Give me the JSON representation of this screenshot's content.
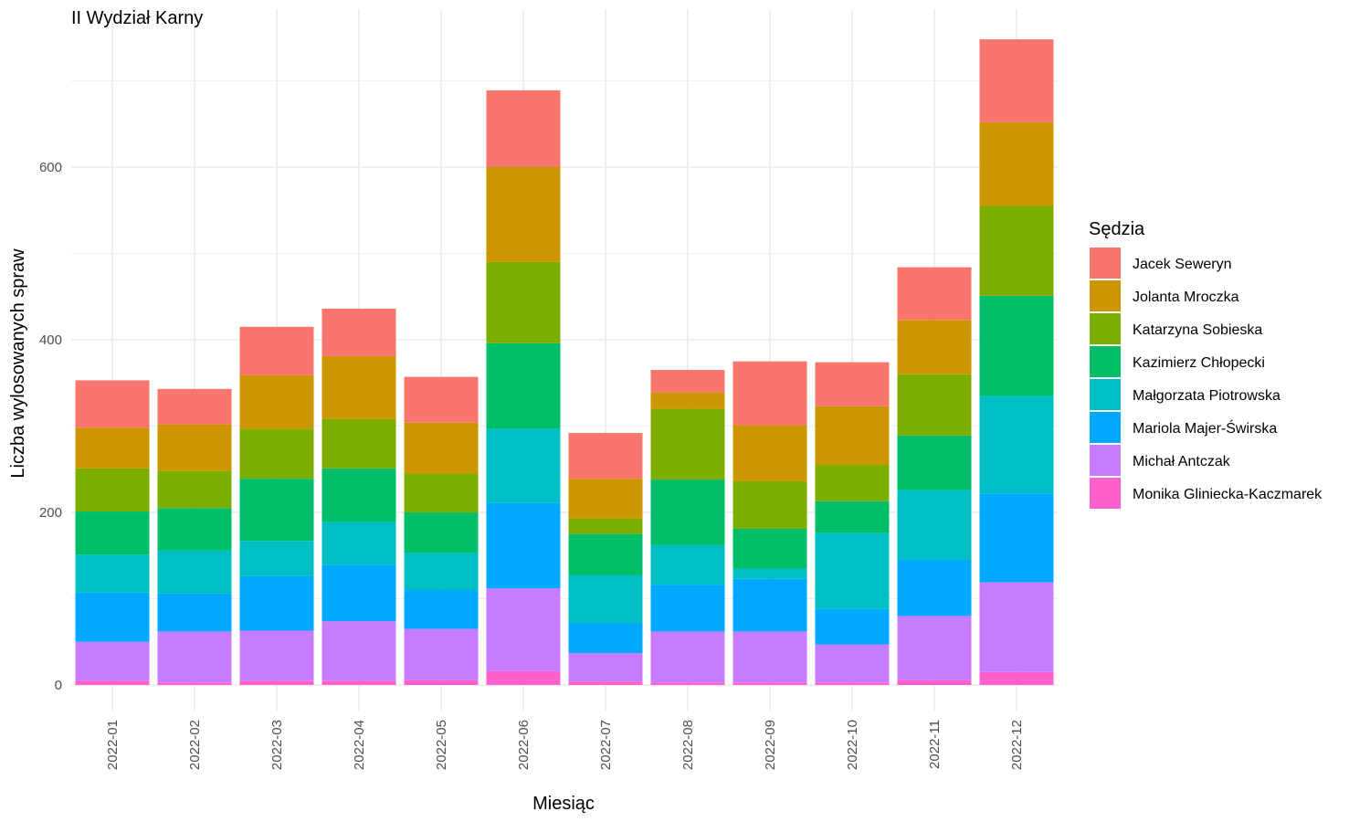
{
  "chart_data": {
    "type": "bar",
    "stacked": true,
    "title": "II Wydział Karny",
    "xlabel": "Miesiąc",
    "ylabel": "Liczba wylosowanych spraw",
    "ylim": [
      -30,
      780
    ],
    "yticks": [
      0,
      200,
      400,
      600
    ],
    "grid": true,
    "legend": {
      "title": "Sędzia",
      "position": "right"
    },
    "categories": [
      "2022-01",
      "2022-02",
      "2022-03",
      "2022-04",
      "2022-05",
      "2022-06",
      "2022-07",
      "2022-08",
      "2022-09",
      "2022-10",
      "2022-11",
      "2022-12"
    ],
    "series": [
      {
        "name": "Monika Gliniecka-Kaczmarek",
        "color": "#FF61CC",
        "values": [
          5,
          3,
          5,
          5,
          6,
          16,
          4,
          3,
          3,
          3,
          6,
          15
        ]
      },
      {
        "name": "Michał Antczak",
        "color": "#C77CFF",
        "values": [
          45,
          59,
          58,
          69,
          59,
          96,
          33,
          59,
          59,
          44,
          74,
          104
        ]
      },
      {
        "name": "Mariola Majer-Świrska",
        "color": "#00A9FF",
        "values": [
          57,
          44,
          63,
          65,
          45,
          99,
          35,
          54,
          61,
          41,
          65,
          103
        ]
      },
      {
        "name": "Małgorzata Piotrowska",
        "color": "#00BFC4",
        "values": [
          44,
          50,
          41,
          50,
          43,
          86,
          55,
          46,
          12,
          88,
          81,
          113
        ]
      },
      {
        "name": "Kazimierz Chłopecki",
        "color": "#00BE67",
        "values": [
          50,
          49,
          72,
          62,
          47,
          99,
          48,
          76,
          46,
          37,
          63,
          116
        ]
      },
      {
        "name": "Katarzyna Sobieska",
        "color": "#7CAE00",
        "values": [
          50,
          43,
          58,
          57,
          45,
          94,
          18,
          82,
          55,
          42,
          71,
          104
        ]
      },
      {
        "name": "Jolanta Mroczka",
        "color": "#CD9600",
        "values": [
          47,
          54,
          62,
          73,
          59,
          110,
          46,
          19,
          65,
          68,
          63,
          97
        ]
      },
      {
        "name": "Jacek Seweryn",
        "color": "#F8766D",
        "values": [
          55,
          41,
          56,
          55,
          53,
          89,
          53,
          26,
          74,
          51,
          61,
          96
        ]
      }
    ]
  }
}
